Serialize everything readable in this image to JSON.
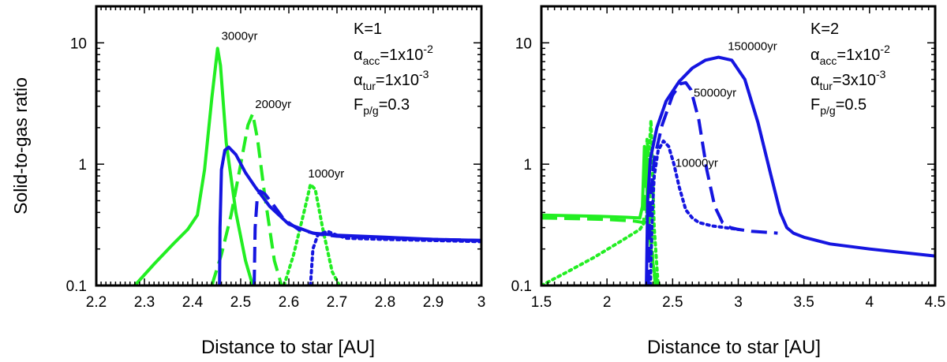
{
  "ylabel": "Solid-to-gas ratio",
  "chart_data": [
    {
      "type": "line",
      "panel": "left",
      "xlabel": "Distance to star [AU]",
      "xlim": [
        2.2,
        3.0
      ],
      "ylim": [
        0.1,
        20
      ],
      "yscale": "log",
      "xticks": [
        2.2,
        2.3,
        2.4,
        2.5,
        2.6,
        2.7,
        2.8,
        2.9,
        3.0
      ],
      "xtick_labels": [
        "2.2",
        "2.3",
        "2.4",
        "2.5",
        "2.6",
        "2.7",
        "2.8",
        "2.9",
        "3"
      ],
      "yticks": [
        0.1,
        1,
        10
      ],
      "ytick_labels": [
        "0.1",
        "1",
        "10"
      ],
      "annotations": {
        "K": "K=1",
        "alpha_acc": {
          "sym": "α",
          "sub": "acc",
          "base": "=1x10",
          "exp": "-2"
        },
        "alpha_tur": {
          "sym": "α",
          "sub": "tur",
          "base": "=1x10",
          "exp": "-3"
        },
        "F": {
          "sym": "F",
          "sub": "p/g",
          "base": "=0.3"
        }
      },
      "curve_labels": [
        {
          "text": "3000yr",
          "x": 2.46,
          "y": 10.6
        },
        {
          "text": "2000yr",
          "x": 2.53,
          "y": 2.9
        },
        {
          "text": "1000yr",
          "x": 2.64,
          "y": 0.78
        }
      ],
      "series": [
        {
          "name": "solid 3000yr",
          "color": "#22ee22",
          "style": "solid",
          "x": [
            2.28,
            2.32,
            2.36,
            2.39,
            2.41,
            2.425,
            2.44,
            2.452,
            2.458,
            2.47,
            2.49,
            2.51,
            2.525
          ],
          "y": [
            0.1,
            0.15,
            0.22,
            0.29,
            0.38,
            0.9,
            3.5,
            9.0,
            6.5,
            1.5,
            0.4,
            0.16,
            0.1
          ]
        },
        {
          "name": "solid 2000yr",
          "color": "#22ee22",
          "style": "dashed",
          "x": [
            2.44,
            2.46,
            2.48,
            2.5,
            2.515,
            2.525,
            2.535,
            2.55,
            2.57,
            2.585
          ],
          "y": [
            0.1,
            0.18,
            0.38,
            1.0,
            2.1,
            2.6,
            1.6,
            0.55,
            0.16,
            0.1
          ]
        },
        {
          "name": "solid 1000yr",
          "color": "#22ee22",
          "style": "dotted",
          "x": [
            2.59,
            2.61,
            2.63,
            2.645,
            2.655,
            2.67,
            2.69,
            2.705
          ],
          "y": [
            0.1,
            0.18,
            0.38,
            0.68,
            0.62,
            0.3,
            0.13,
            0.1
          ]
        },
        {
          "name": "dust 3000yr",
          "color": "#1515e0",
          "style": "solid",
          "x": [
            2.456,
            2.457,
            2.46,
            2.467,
            2.475,
            2.49,
            2.51,
            2.53,
            2.56,
            2.6,
            2.65,
            2.7,
            2.8,
            2.9,
            3.0
          ],
          "y": [
            0.1,
            0.3,
            0.9,
            1.3,
            1.38,
            1.2,
            0.85,
            0.65,
            0.45,
            0.32,
            0.27,
            0.26,
            0.25,
            0.24,
            0.235
          ]
        },
        {
          "name": "dust 2000yr",
          "color": "#1515e0",
          "style": "dashed",
          "x": [
            2.528,
            2.53,
            2.534,
            2.54,
            2.55,
            2.57,
            2.59,
            2.62,
            2.66,
            2.7,
            2.8,
            2.9,
            3.0
          ],
          "y": [
            0.1,
            0.3,
            0.5,
            0.6,
            0.57,
            0.45,
            0.35,
            0.29,
            0.265,
            0.255,
            0.245,
            0.24,
            0.235
          ]
        },
        {
          "name": "dust 1000yr",
          "color": "#1515e0",
          "style": "dotted",
          "x": [
            2.645,
            2.65,
            2.66,
            2.68,
            2.7,
            2.72,
            2.8,
            2.9,
            3.0
          ],
          "y": [
            0.1,
            0.2,
            0.26,
            0.28,
            0.26,
            0.245,
            0.24,
            0.235,
            0.23
          ]
        }
      ]
    },
    {
      "type": "line",
      "panel": "right",
      "xlabel": "Distance to star [AU]",
      "xlim": [
        1.5,
        4.5
      ],
      "ylim": [
        0.1,
        20
      ],
      "yscale": "log",
      "xticks": [
        1.5,
        2.0,
        2.5,
        3.0,
        3.5,
        4.0,
        4.5
      ],
      "xtick_labels": [
        "1.5",
        "2",
        "2.5",
        "3",
        "3.5",
        "4",
        "4.5"
      ],
      "yticks": [
        0.1,
        1,
        10
      ],
      "ytick_labels": [
        "0.1",
        "1",
        "10"
      ],
      "annotations": {
        "K": "K=2",
        "alpha_acc": {
          "sym": "α",
          "sub": "acc",
          "base": "=1x10",
          "exp": "-2"
        },
        "alpha_tur": {
          "sym": "α",
          "sub": "tur",
          "base": "=3x10",
          "exp": "-3"
        },
        "F": {
          "sym": "F",
          "sub": "p/g",
          "base": "=0.5"
        }
      },
      "curve_labels": [
        {
          "text": "150000yr",
          "x": 2.92,
          "y": 8.7
        },
        {
          "text": "50000yr",
          "x": 2.66,
          "y": 3.6
        },
        {
          "text": "10000yr",
          "x": 2.52,
          "y": 0.95
        }
      ],
      "series": [
        {
          "name": "solid 150000yr",
          "color": "#22ee22",
          "style": "solid",
          "x": [
            1.5,
            1.8,
            2.0,
            2.15,
            2.25,
            2.27,
            2.285,
            2.295,
            2.305,
            2.32,
            2.34,
            2.36,
            2.38,
            2.4
          ],
          "y": [
            0.38,
            0.375,
            0.37,
            0.365,
            0.36,
            0.45,
            1.4,
            1.3,
            0.6,
            0.3,
            0.18,
            0.13,
            0.11,
            0.1
          ]
        },
        {
          "name": "solid 50000yr",
          "color": "#22ee22",
          "style": "dashed",
          "x": [
            1.5,
            1.8,
            2.0,
            2.2,
            2.28,
            2.295,
            2.305,
            2.315,
            2.33,
            2.35,
            2.37
          ],
          "y": [
            0.36,
            0.355,
            0.35,
            0.34,
            0.33,
            0.8,
            1.6,
            1.2,
            0.4,
            0.15,
            0.1
          ]
        },
        {
          "name": "solid 10000yr",
          "color": "#22ee22",
          "style": "dotted",
          "x": [
            1.5,
            1.7,
            1.9,
            2.1,
            2.25,
            2.3,
            2.32,
            2.335,
            2.345,
            2.36,
            2.39
          ],
          "y": [
            0.1,
            0.13,
            0.17,
            0.23,
            0.29,
            0.35,
            1.2,
            2.3,
            1.0,
            0.3,
            0.1
          ]
        },
        {
          "name": "dust 150000yr",
          "color": "#1515e0",
          "style": "solid",
          "x": [
            2.3,
            2.31,
            2.33,
            2.38,
            2.45,
            2.55,
            2.65,
            2.75,
            2.85,
            2.95,
            3.05,
            3.15,
            3.25,
            3.32,
            3.37,
            3.42,
            3.5,
            3.7,
            4.0,
            4.5
          ],
          "y": [
            0.1,
            0.5,
            1.1,
            2.0,
            3.3,
            4.8,
            6.2,
            7.2,
            7.6,
            7.2,
            5.0,
            2.2,
            0.8,
            0.4,
            0.3,
            0.27,
            0.25,
            0.22,
            0.2,
            0.175
          ]
        },
        {
          "name": "dust 50000yr",
          "color": "#1515e0",
          "style": "dashed",
          "x": [
            2.315,
            2.33,
            2.36,
            2.42,
            2.5,
            2.56,
            2.6,
            2.64,
            2.7,
            2.76,
            2.82,
            2.88,
            2.94,
            3.0,
            3.1,
            3.3
          ],
          "y": [
            0.1,
            0.5,
            1.1,
            2.1,
            3.7,
            4.6,
            4.7,
            4.1,
            2.3,
            0.9,
            0.45,
            0.33,
            0.3,
            0.29,
            0.28,
            0.27
          ]
        },
        {
          "name": "dust 10000yr",
          "color": "#1515e0",
          "style": "dotted",
          "x": [
            2.33,
            2.345,
            2.36,
            2.39,
            2.43,
            2.47,
            2.51,
            2.55,
            2.6,
            2.65,
            2.7,
            2.8,
            2.9,
            3.0
          ],
          "y": [
            0.1,
            0.4,
            0.8,
            1.3,
            1.55,
            1.4,
            1.0,
            0.65,
            0.42,
            0.36,
            0.33,
            0.31,
            0.3,
            0.29
          ]
        }
      ]
    }
  ]
}
